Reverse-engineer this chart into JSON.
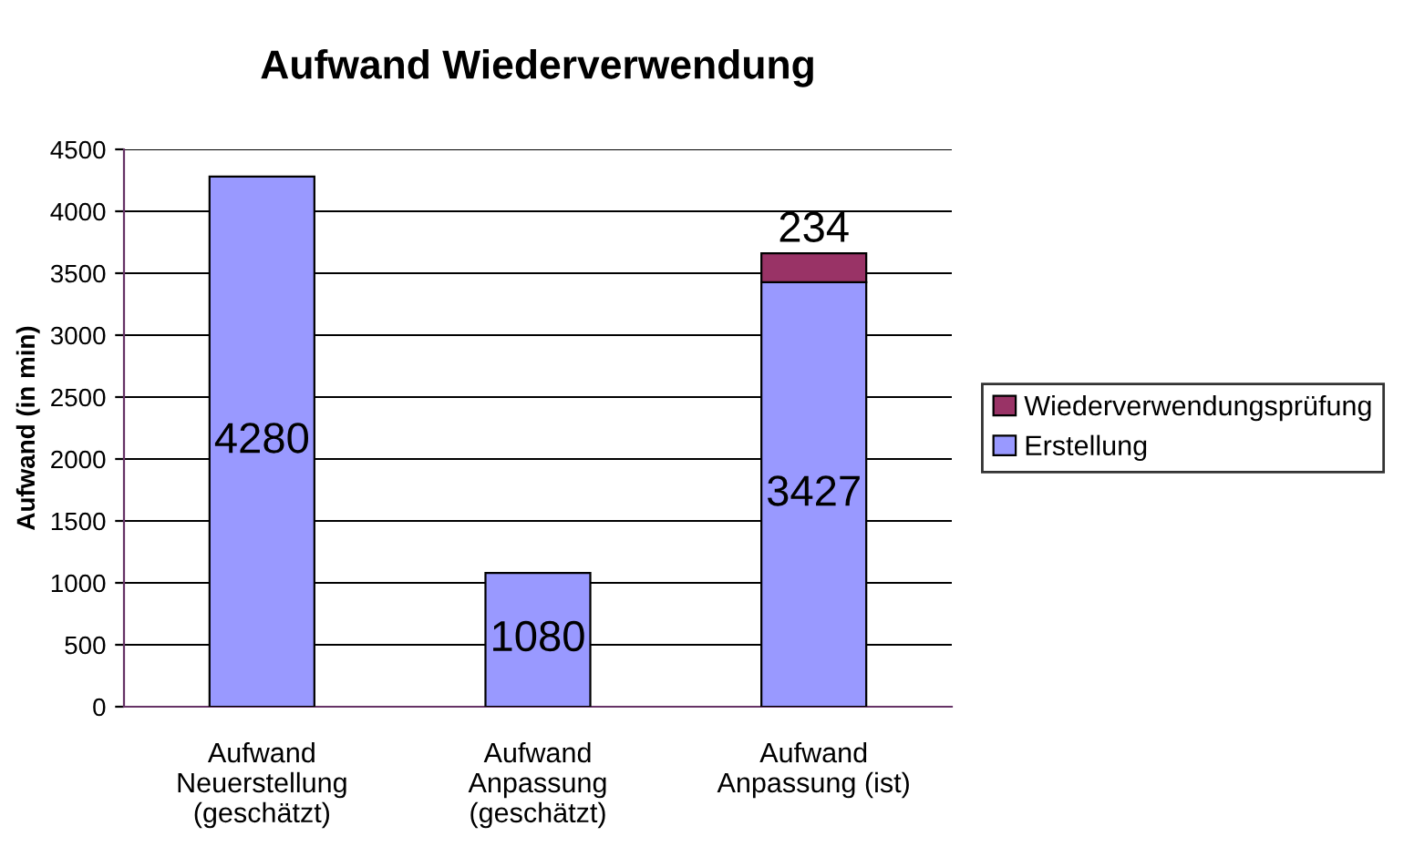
{
  "chart_data": {
    "type": "bar",
    "title": "Aufwand Wiederverwendung",
    "ylabel": "Aufwand (in min)",
    "categories": [
      "Aufwand\nNeuerstellung\n(geschätzt)",
      "Aufwand\nAnpassung\n(geschätzt)",
      "Aufwand\nAnpassung (ist)"
    ],
    "series": [
      {
        "name": "Erstellung",
        "color": "#9999ff",
        "values": [
          4280,
          1080,
          3427
        ]
      },
      {
        "name": "Wiederverwendungsprüfung",
        "color": "#993366",
        "values": [
          null,
          null,
          234
        ]
      }
    ],
    "stacked": true,
    "data_labels": true,
    "ylim": [
      0,
      4500
    ],
    "yticks": [
      0,
      500,
      1000,
      1500,
      2000,
      2500,
      3000,
      3500,
      4000,
      4500
    ],
    "grid": "y",
    "legend": "right"
  }
}
